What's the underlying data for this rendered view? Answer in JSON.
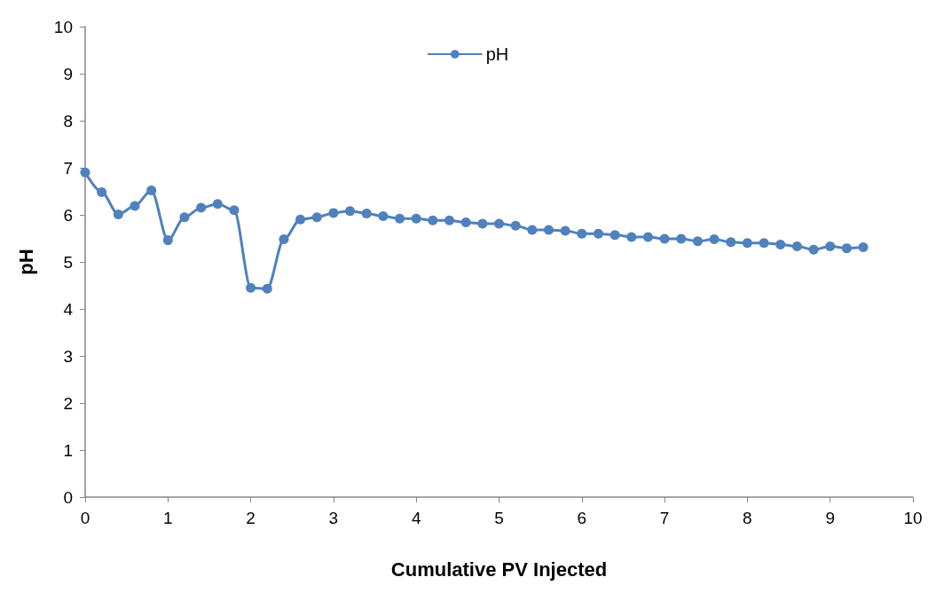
{
  "chart_data": {
    "type": "line",
    "xlabel": "Cumulative PV Injected",
    "ylabel": "pH",
    "xlim": [
      0,
      10
    ],
    "xticks": [
      0,
      1,
      2,
      3,
      4,
      5,
      6,
      7,
      8,
      9,
      10
    ],
    "ylim": [
      0,
      10
    ],
    "yticks": [
      0,
      1,
      2,
      3,
      4,
      5,
      6,
      7,
      8,
      9,
      10
    ],
    "grid": false,
    "legend": "top",
    "marker": "circle",
    "line_style": "solid",
    "series": [
      {
        "name": "pH",
        "color": "#4f81bd",
        "x": [
          0,
          0.2,
          0.4,
          0.6,
          0.8,
          1.0,
          1.2,
          1.4,
          1.6,
          1.8,
          2.0,
          2.2,
          2.4,
          2.6,
          2.8,
          3.0,
          3.2,
          3.4,
          3.6,
          3.8,
          4.0,
          4.2,
          4.4,
          4.6,
          4.8,
          5.0,
          5.2,
          5.4,
          5.6,
          5.8,
          6.0,
          6.2,
          6.4,
          6.6,
          6.8,
          7.0,
          7.2,
          7.4,
          7.6,
          7.8,
          8.0,
          8.2,
          8.4,
          8.6,
          8.8,
          9.0,
          9.2,
          9.4
        ],
        "values": [
          6.9,
          6.48,
          6.01,
          6.19,
          6.52,
          5.46,
          5.95,
          6.15,
          6.23,
          6.1,
          4.45,
          4.43,
          5.48,
          5.9,
          5.95,
          6.04,
          6.08,
          6.03,
          5.97,
          5.92,
          5.92,
          5.88,
          5.88,
          5.84,
          5.81,
          5.81,
          5.77,
          5.68,
          5.68,
          5.66,
          5.6,
          5.6,
          5.57,
          5.53,
          5.53,
          5.49,
          5.49,
          5.44,
          5.48,
          5.42,
          5.4,
          5.4,
          5.37,
          5.33,
          5.26,
          5.33,
          5.29,
          5.31
        ]
      }
    ]
  }
}
